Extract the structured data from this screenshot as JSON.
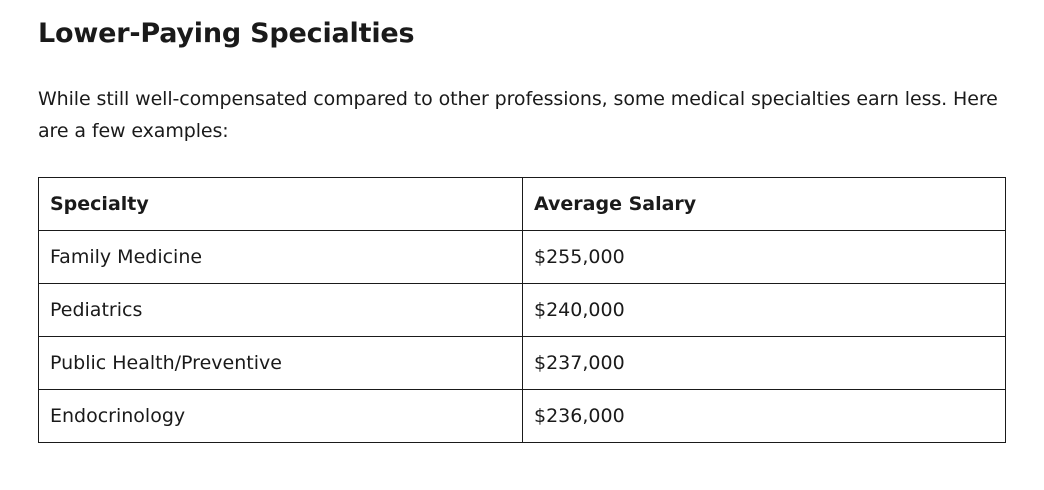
{
  "section": {
    "heading": "Lower-Paying Specialties",
    "intro": "While still well-compensated compared to other professions, some medical specialties earn less. Here are a few examples:"
  },
  "table": {
    "headers": [
      "Specialty",
      "Average Salary"
    ],
    "rows": [
      [
        "Family Medicine",
        "$255,000"
      ],
      [
        "Pediatrics",
        "$240,000"
      ],
      [
        "Public Health/Preventive",
        "$237,000"
      ],
      [
        "Endocrinology",
        "$236,000"
      ]
    ]
  }
}
